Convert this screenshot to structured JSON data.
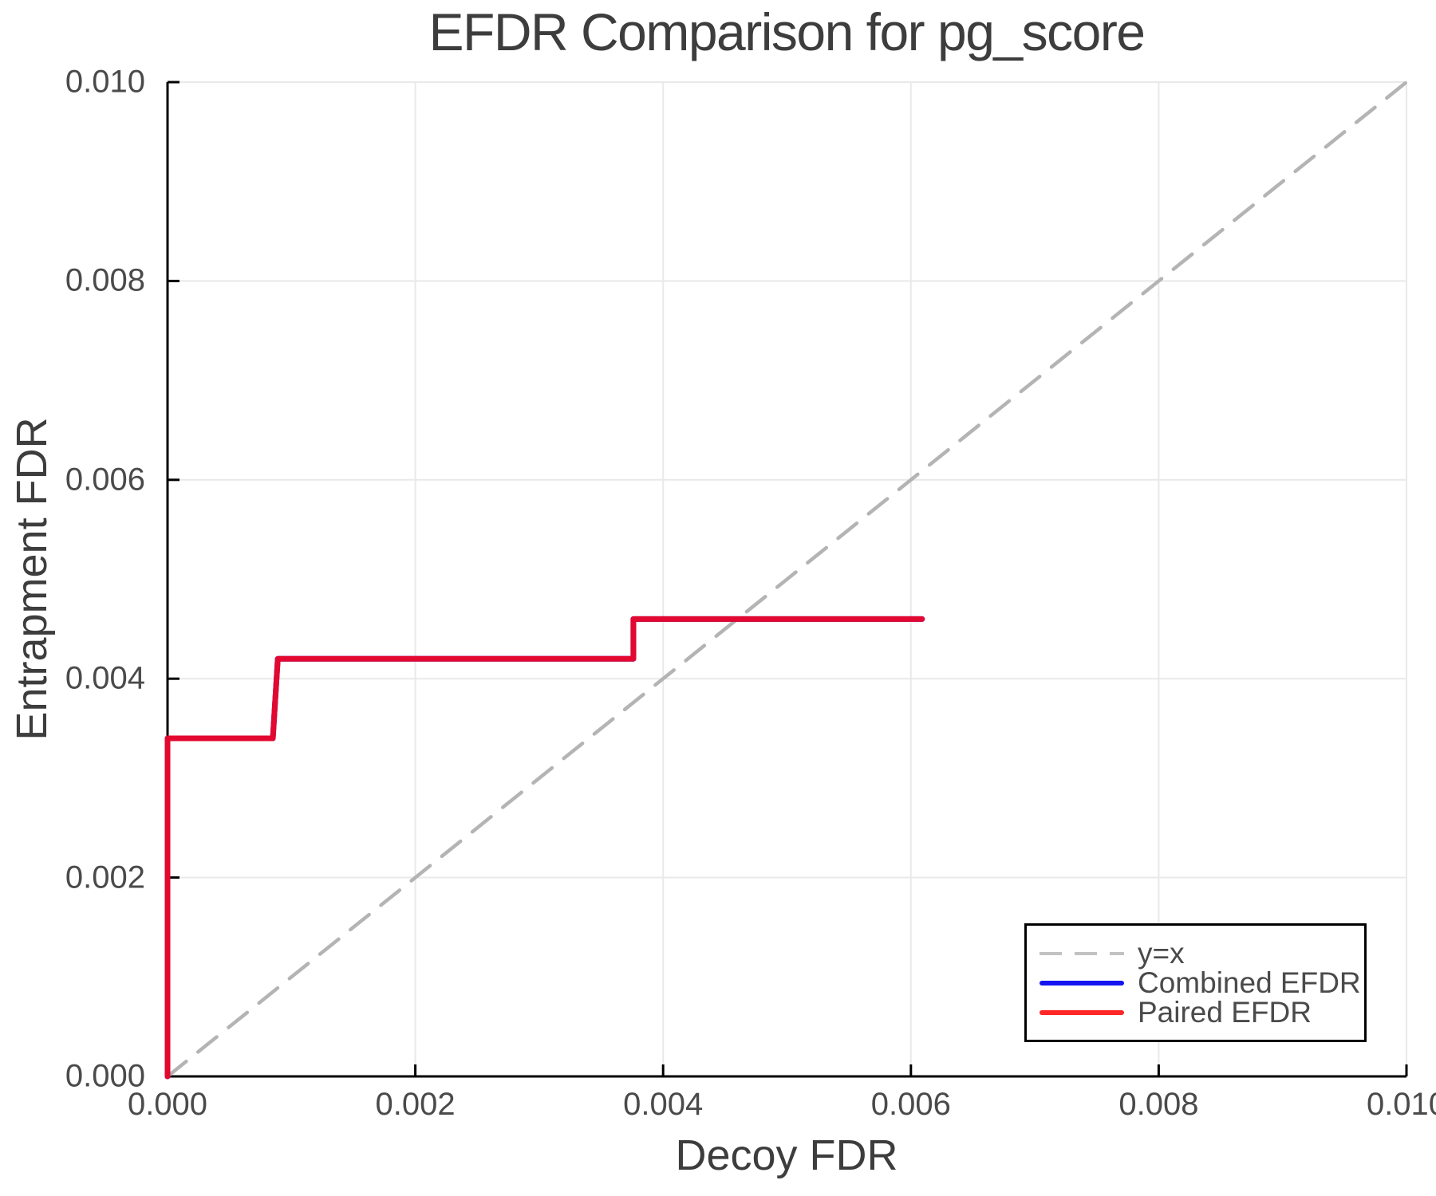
{
  "chart_data": {
    "type": "line",
    "title": "EFDR Comparison for pg_score",
    "xlabel": "Decoy FDR",
    "ylabel": "Entrapment FDR",
    "xlim": [
      0.0,
      0.01
    ],
    "ylim": [
      0.0,
      0.01
    ],
    "grid": true,
    "legend_position": "bottom-right",
    "x_ticks": [
      0.0,
      0.002,
      0.004,
      0.006,
      0.008,
      0.01
    ],
    "x_tick_labels": [
      "0.000",
      "0.002",
      "0.004",
      "0.006",
      "0.008",
      "0.010"
    ],
    "y_ticks": [
      0.0,
      0.002,
      0.004,
      0.006,
      0.008,
      0.01
    ],
    "y_tick_labels": [
      "0.000",
      "0.002",
      "0.004",
      "0.006",
      "0.008",
      "0.010"
    ],
    "series": [
      {
        "name": "y=x",
        "style": "dashed",
        "color": "#b4b4b4",
        "legend_color": "#c2c2c2",
        "width": 4.5,
        "points": [
          [
            0.0,
            0.0
          ],
          [
            0.01,
            0.01
          ]
        ]
      },
      {
        "name": "Combined EFDR",
        "style": "solid",
        "color": "#1212f0",
        "legend_color": "#1414f0",
        "width": 7,
        "points": [
          [
            0.0,
            0.0
          ],
          [
            0.0,
            0.0034
          ],
          [
            0.00085,
            0.0034
          ],
          [
            0.00089,
            0.0042
          ],
          [
            0.00376,
            0.0042
          ],
          [
            0.00376,
            0.0046
          ],
          [
            0.00609,
            0.0046
          ]
        ]
      },
      {
        "name": "Paired EFDR",
        "style": "solid",
        "color": "#e2082f",
        "legend_color": "#ff2626",
        "width": 7,
        "points": [
          [
            0.0,
            0.0
          ],
          [
            0.0,
            0.0034
          ],
          [
            0.00085,
            0.0034
          ],
          [
            0.00089,
            0.0042
          ],
          [
            0.00376,
            0.0042
          ],
          [
            0.00376,
            0.0046
          ],
          [
            0.00609,
            0.0046
          ]
        ]
      }
    ],
    "colors": {
      "grid": "#e9e9e9",
      "spine": "#000000",
      "title_text": "#3d3d3d",
      "tick_text": "#4a4a4a"
    }
  }
}
